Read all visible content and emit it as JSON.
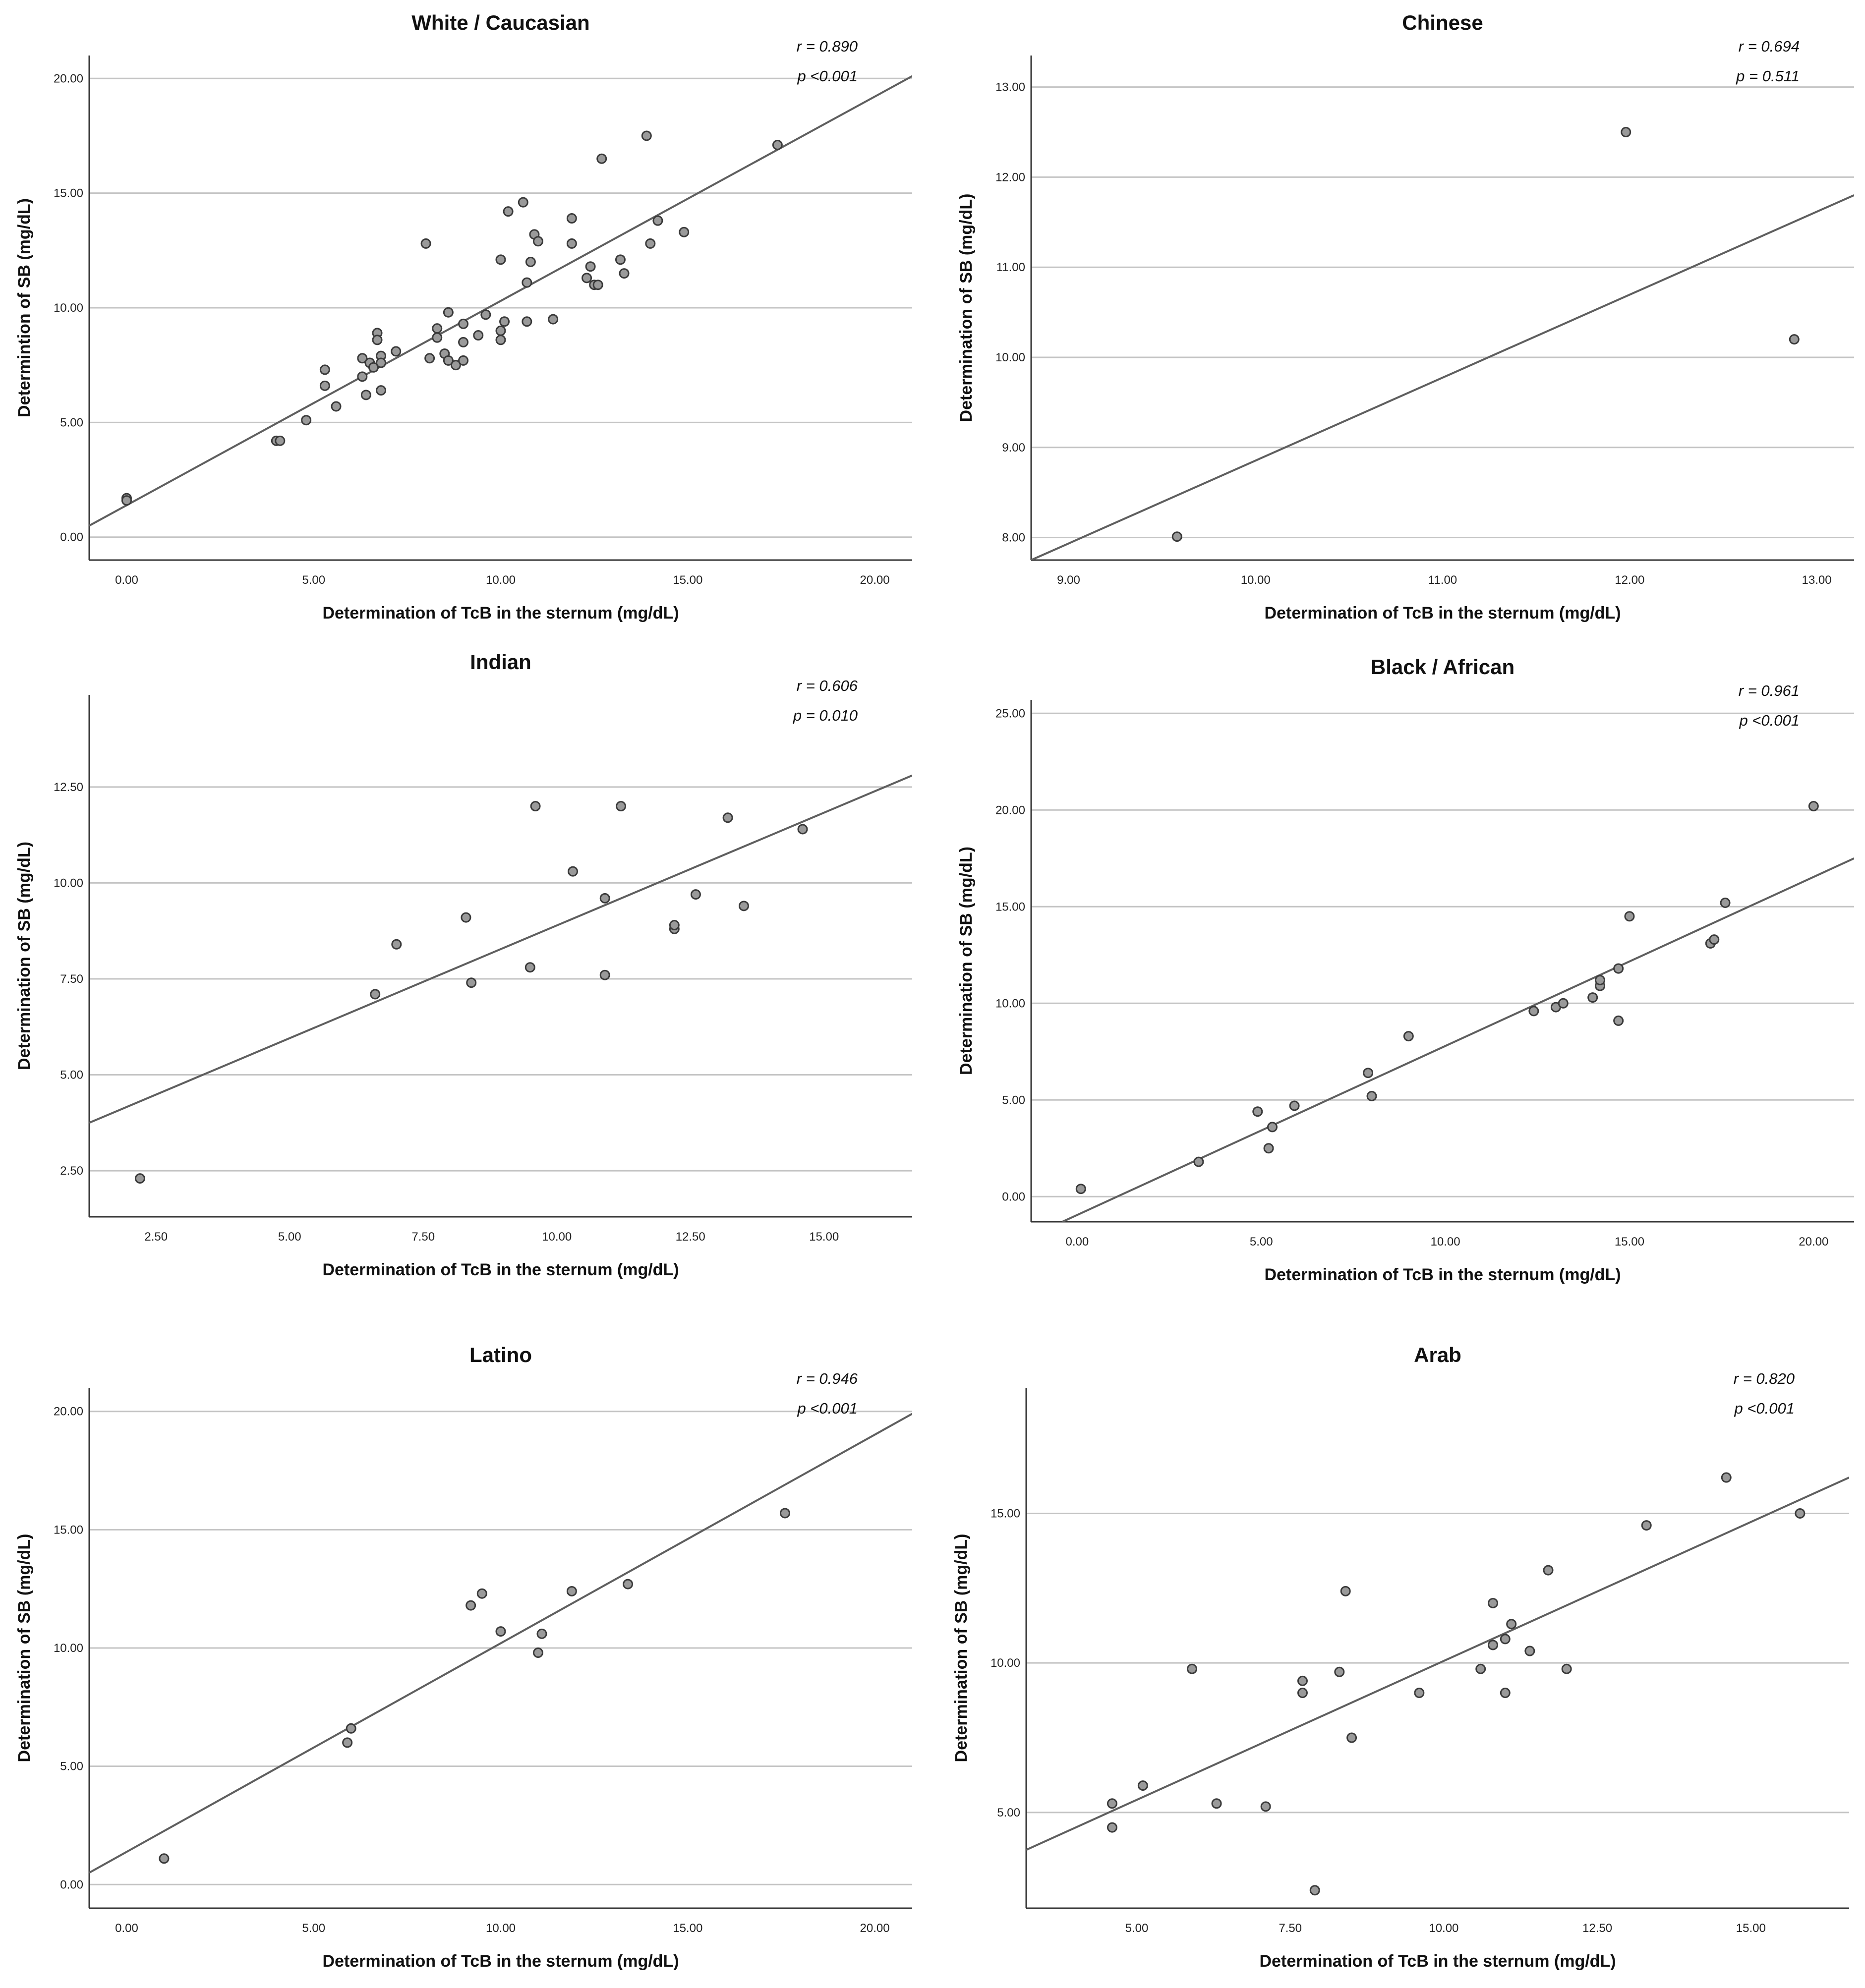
{
  "chart_data": [
    {
      "type": "scatter",
      "title": "White / Caucasian",
      "xlabel": "Determination of TcB in the sternum (mg/dL)",
      "ylabel": "Determintion of SB (mg/dL)",
      "xticks": [
        "0.00",
        "5.00",
        "10.00",
        "15.00",
        "20.00"
      ],
      "yticks": [
        "0.00",
        "5.00",
        "10.00",
        "15.00",
        "20.00"
      ],
      "xlim": [
        -1,
        21
      ],
      "ylim": [
        -1,
        21
      ],
      "grid": "horizontal",
      "r_label": "r = 0.890",
      "p_label": "p <0.001",
      "fit_line": {
        "x": [
          -1,
          21
        ],
        "y": [
          0.5,
          20.1
        ]
      },
      "points": [
        {
          "x": 0.0,
          "y": 1.7
        },
        {
          "x": 0.0,
          "y": 1.6
        },
        {
          "x": 4.0,
          "y": 4.2
        },
        {
          "x": 4.1,
          "y": 4.2
        },
        {
          "x": 4.8,
          "y": 5.1
        },
        {
          "x": 5.3,
          "y": 7.3
        },
        {
          "x": 5.3,
          "y": 6.6
        },
        {
          "x": 5.6,
          "y": 5.7
        },
        {
          "x": 6.3,
          "y": 7.8
        },
        {
          "x": 6.3,
          "y": 7.0
        },
        {
          "x": 6.4,
          "y": 6.2
        },
        {
          "x": 6.5,
          "y": 7.6
        },
        {
          "x": 6.7,
          "y": 8.9
        },
        {
          "x": 6.7,
          "y": 8.6
        },
        {
          "x": 6.6,
          "y": 7.4
        },
        {
          "x": 6.8,
          "y": 7.9
        },
        {
          "x": 6.8,
          "y": 7.6
        },
        {
          "x": 6.8,
          "y": 6.4
        },
        {
          "x": 7.2,
          "y": 8.1
        },
        {
          "x": 8.0,
          "y": 12.8
        },
        {
          "x": 8.1,
          "y": 7.8
        },
        {
          "x": 8.3,
          "y": 9.1
        },
        {
          "x": 8.3,
          "y": 8.7
        },
        {
          "x": 8.5,
          "y": 8.0
        },
        {
          "x": 8.6,
          "y": 9.8
        },
        {
          "x": 8.6,
          "y": 7.7
        },
        {
          "x": 8.8,
          "y": 7.5
        },
        {
          "x": 9.0,
          "y": 9.3
        },
        {
          "x": 9.0,
          "y": 8.5
        },
        {
          "x": 9.0,
          "y": 7.7
        },
        {
          "x": 9.4,
          "y": 8.8
        },
        {
          "x": 9.6,
          "y": 9.7
        },
        {
          "x": 10.0,
          "y": 12.1
        },
        {
          "x": 10.0,
          "y": 9.0
        },
        {
          "x": 10.0,
          "y": 8.6
        },
        {
          "x": 10.1,
          "y": 9.4
        },
        {
          "x": 10.2,
          "y": 14.2
        },
        {
          "x": 10.6,
          "y": 14.6
        },
        {
          "x": 10.7,
          "y": 11.1
        },
        {
          "x": 10.7,
          "y": 9.4
        },
        {
          "x": 10.8,
          "y": 12.0
        },
        {
          "x": 10.9,
          "y": 13.2
        },
        {
          "x": 11.0,
          "y": 12.9
        },
        {
          "x": 11.4,
          "y": 9.5
        },
        {
          "x": 11.9,
          "y": 13.9
        },
        {
          "x": 11.9,
          "y": 12.8
        },
        {
          "x": 12.3,
          "y": 11.3
        },
        {
          "x": 12.4,
          "y": 11.8
        },
        {
          "x": 12.5,
          "y": 11.0
        },
        {
          "x": 12.6,
          "y": 11.0
        },
        {
          "x": 12.7,
          "y": 16.5
        },
        {
          "x": 13.2,
          "y": 12.1
        },
        {
          "x": 13.3,
          "y": 11.5
        },
        {
          "x": 13.9,
          "y": 17.5
        },
        {
          "x": 14.0,
          "y": 12.8
        },
        {
          "x": 14.2,
          "y": 13.8
        },
        {
          "x": 14.9,
          "y": 13.3
        },
        {
          "x": 17.4,
          "y": 17.1
        }
      ]
    },
    {
      "type": "scatter",
      "title": "Chinese",
      "xlabel": "Determination of TcB in the sternum (mg/dL)",
      "ylabel": "Determination of SB (mg/dL)",
      "xticks": [
        "9.00",
        "10.00",
        "11.00",
        "12.00",
        "13.00"
      ],
      "yticks": [
        "8.00",
        "9.00",
        "10.00",
        "11.00",
        "12.00",
        "13.00"
      ],
      "xlim": [
        8.8,
        13.2
      ],
      "ylim": [
        7.75,
        13.35
      ],
      "grid": "horizontal",
      "r_label": "r = 0.694",
      "p_label": "p = 0.511",
      "fit_line": {
        "x": [
          8.8,
          13.2
        ],
        "y": [
          7.75,
          11.8
        ]
      },
      "points": [
        {
          "x": 9.58,
          "y": 8.01
        },
        {
          "x": 11.98,
          "y": 12.5
        },
        {
          "x": 12.88,
          "y": 10.2
        }
      ]
    },
    {
      "type": "scatter",
      "title": "Indian",
      "xlabel": "Determination of TcB in the sternum (mg/dL)",
      "ylabel": "Determination of SB (mg/dL)",
      "xticks": [
        "2.50",
        "5.00",
        "7.50",
        "10.00",
        "12.50",
        "15.00"
      ],
      "yticks": [
        "2.50",
        "5.00",
        "7.50",
        "10.00",
        "12.50"
      ],
      "xlim": [
        1.25,
        16.65
      ],
      "ylim": [
        1.3,
        14.9
      ],
      "grid": "horizontal",
      "r_label": "r = 0.606",
      "p_label": "p = 0.010",
      "fit_line": {
        "x": [
          1.25,
          16.65
        ],
        "y": [
          3.75,
          12.8
        ]
      },
      "points": [
        {
          "x": 2.2,
          "y": 2.3
        },
        {
          "x": 6.6,
          "y": 7.1
        },
        {
          "x": 7.0,
          "y": 8.4
        },
        {
          "x": 8.3,
          "y": 9.1
        },
        {
          "x": 8.4,
          "y": 7.4
        },
        {
          "x": 9.5,
          "y": 7.8
        },
        {
          "x": 9.6,
          "y": 12.0
        },
        {
          "x": 10.3,
          "y": 10.3
        },
        {
          "x": 10.9,
          "y": 9.6
        },
        {
          "x": 10.9,
          "y": 7.6
        },
        {
          "x": 11.2,
          "y": 12.0
        },
        {
          "x": 12.2,
          "y": 8.8
        },
        {
          "x": 12.2,
          "y": 8.9
        },
        {
          "x": 12.6,
          "y": 9.7
        },
        {
          "x": 13.2,
          "y": 11.7
        },
        {
          "x": 13.5,
          "y": 9.4
        },
        {
          "x": 14.6,
          "y": 11.4
        }
      ]
    },
    {
      "type": "scatter",
      "title": "Black / African",
      "xlabel": "Determination of TcB in the sternum (mg/dL)",
      "ylabel": "Determination of SB (mg/dL)",
      "xticks": [
        "0.00",
        "5.00",
        "10.00",
        "15.00",
        "20.00"
      ],
      "yticks": [
        "0.00",
        "5.00",
        "10.00",
        "15.00",
        "20.00",
        "25.00"
      ],
      "xlim": [
        -1.25,
        21.1
      ],
      "ylim": [
        -1.3,
        25.7
      ],
      "grid": "horizontal",
      "r_label": "r = 0.961",
      "p_label": "p <0.001",
      "fit_line": {
        "x": [
          -0.4,
          21.1
        ],
        "y": [
          -1.3,
          17.5
        ]
      },
      "points": [
        {
          "x": 0.1,
          "y": 0.4
        },
        {
          "x": 3.3,
          "y": 1.8
        },
        {
          "x": 4.9,
          "y": 4.4
        },
        {
          "x": 5.2,
          "y": 2.5
        },
        {
          "x": 5.3,
          "y": 3.6
        },
        {
          "x": 5.9,
          "y": 4.7
        },
        {
          "x": 7.9,
          "y": 6.4
        },
        {
          "x": 8.0,
          "y": 5.2
        },
        {
          "x": 9.0,
          "y": 8.3
        },
        {
          "x": 12.4,
          "y": 9.6
        },
        {
          "x": 13.0,
          "y": 9.8
        },
        {
          "x": 13.2,
          "y": 10.0
        },
        {
          "x": 14.0,
          "y": 10.3
        },
        {
          "x": 14.2,
          "y": 10.9
        },
        {
          "x": 14.2,
          "y": 11.2
        },
        {
          "x": 14.7,
          "y": 11.8
        },
        {
          "x": 14.7,
          "y": 9.1
        },
        {
          "x": 15.0,
          "y": 14.5
        },
        {
          "x": 17.2,
          "y": 13.1
        },
        {
          "x": 17.3,
          "y": 13.3
        },
        {
          "x": 17.6,
          "y": 15.2
        },
        {
          "x": 20.0,
          "y": 20.2
        }
      ]
    },
    {
      "type": "scatter",
      "title": "Latino",
      "xlabel": "Determination of TcB in the sternum (mg/dL)",
      "ylabel": "Determination of SB (mg/dL)",
      "xticks": [
        "0.00",
        "5.00",
        "10.00",
        "15.00",
        "20.00"
      ],
      "yticks": [
        "0.00",
        "5.00",
        "10.00",
        "15.00",
        "20.00"
      ],
      "xlim": [
        -1,
        21
      ],
      "ylim": [
        -1,
        21
      ],
      "grid": "horizontal",
      "r_label": "r = 0.946",
      "p_label": "p <0.001",
      "fit_line": {
        "x": [
          -1,
          21
        ],
        "y": [
          0.5,
          19.9
        ]
      },
      "points": [
        {
          "x": 1.0,
          "y": 1.1
        },
        {
          "x": 5.9,
          "y": 6.0
        },
        {
          "x": 6.0,
          "y": 6.6
        },
        {
          "x": 9.2,
          "y": 11.8
        },
        {
          "x": 9.5,
          "y": 12.3
        },
        {
          "x": 10.0,
          "y": 10.7
        },
        {
          "x": 11.0,
          "y": 9.8
        },
        {
          "x": 11.1,
          "y": 10.6
        },
        {
          "x": 11.9,
          "y": 12.4
        },
        {
          "x": 13.4,
          "y": 12.7
        },
        {
          "x": 17.6,
          "y": 15.7
        }
      ]
    },
    {
      "type": "scatter",
      "title": "Arab",
      "xlabel": "Determination of TcB in the sternum (mg/dL)",
      "ylabel": "Determination of SB (mg/dL)",
      "xticks": [
        "5.00",
        "7.50",
        "10.00",
        "12.50",
        "15.00"
      ],
      "yticks": [
        "5.00",
        "10.00",
        "15.00"
      ],
      "xlim": [
        3.2,
        16.6
      ],
      "ylim": [
        1.8,
        19.2
      ],
      "grid": "horizontal",
      "r_label": "r = 0.820",
      "p_label": "p <0.001",
      "fit_line": {
        "x": [
          3.2,
          16.6
        ],
        "y": [
          3.75,
          16.2
        ]
      },
      "points": [
        {
          "x": 4.6,
          "y": 5.3
        },
        {
          "x": 4.6,
          "y": 4.5
        },
        {
          "x": 5.1,
          "y": 5.9
        },
        {
          "x": 5.9,
          "y": 9.8
        },
        {
          "x": 6.3,
          "y": 5.3
        },
        {
          "x": 7.1,
          "y": 5.2
        },
        {
          "x": 7.7,
          "y": 9.4
        },
        {
          "x": 7.7,
          "y": 9.0
        },
        {
          "x": 7.9,
          "y": 2.4
        },
        {
          "x": 8.3,
          "y": 9.7
        },
        {
          "x": 8.4,
          "y": 12.4
        },
        {
          "x": 8.5,
          "y": 7.5
        },
        {
          "x": 9.6,
          "y": 9.0
        },
        {
          "x": 10.6,
          "y": 9.8
        },
        {
          "x": 10.8,
          "y": 12.0
        },
        {
          "x": 10.8,
          "y": 10.6
        },
        {
          "x": 11.0,
          "y": 10.8
        },
        {
          "x": 11.0,
          "y": 9.0
        },
        {
          "x": 11.1,
          "y": 11.3
        },
        {
          "x": 11.4,
          "y": 10.4
        },
        {
          "x": 11.7,
          "y": 13.1
        },
        {
          "x": 12.0,
          "y": 9.8
        },
        {
          "x": 13.3,
          "y": 14.6
        },
        {
          "x": 14.6,
          "y": 16.2
        },
        {
          "x": 15.8,
          "y": 15.0
        }
      ]
    }
  ]
}
